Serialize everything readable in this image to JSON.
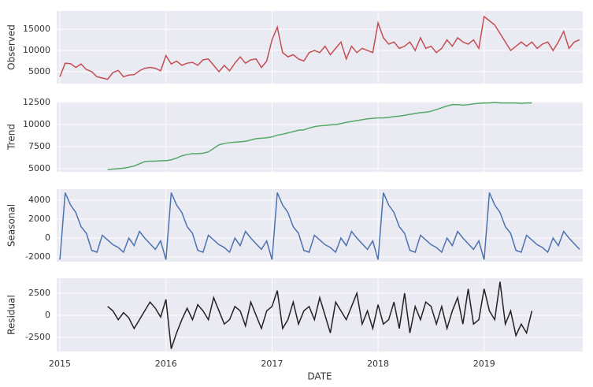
{
  "chart_data": [
    {
      "type": "line",
      "ylabel": "Observed",
      "color": "#c44e52",
      "x": [
        2015,
        2015.05,
        2015.1,
        2015.15,
        2015.2,
        2015.25,
        2015.3,
        2015.35,
        2015.4,
        2015.45,
        2015.5,
        2015.55,
        2015.6,
        2015.65,
        2015.7,
        2015.75,
        2015.8,
        2015.85,
        2015.9,
        2015.95,
        2016,
        2016.05,
        2016.1,
        2016.15,
        2016.2,
        2016.25,
        2016.3,
        2016.35,
        2016.4,
        2016.45,
        2016.5,
        2016.55,
        2016.6,
        2016.65,
        2016.7,
        2016.75,
        2016.8,
        2016.85,
        2016.9,
        2016.95,
        2017,
        2017.05,
        2017.1,
        2017.15,
        2017.2,
        2017.25,
        2017.3,
        2017.35,
        2017.4,
        2017.45,
        2017.5,
        2017.55,
        2017.6,
        2017.65,
        2017.7,
        2017.75,
        2017.8,
        2017.85,
        2017.9,
        2017.95,
        2018,
        2018.05,
        2018.1,
        2018.15,
        2018.2,
        2018.25,
        2018.3,
        2018.35,
        2018.4,
        2018.45,
        2018.5,
        2018.55,
        2018.6,
        2018.65,
        2018.7,
        2018.75,
        2018.8,
        2018.85,
        2018.9,
        2018.95,
        2019,
        2019.05,
        2019.1,
        2019.15,
        2019.2,
        2019.25,
        2019.3,
        2019.35,
        2019.4,
        2019.45,
        2019.5,
        2019.55,
        2019.6,
        2019.65,
        2019.7,
        2019.75,
        2019.8,
        2019.85,
        2019.9
      ],
      "values": [
        3800,
        7000,
        6900,
        6000,
        6800,
        5500,
        5000,
        3800,
        3500,
        3200,
        4800,
        5300,
        3800,
        4200,
        4300,
        5200,
        5800,
        6000,
        5800,
        5200,
        8800,
        6800,
        7500,
        6500,
        7000,
        7200,
        6500,
        7800,
        8000,
        6500,
        5000,
        6500,
        5200,
        7000,
        8500,
        7000,
        7800,
        8000,
        6000,
        7500,
        12500,
        15500,
        9500,
        8500,
        9000,
        8000,
        7500,
        9500,
        10000,
        9500,
        11000,
        9000,
        10500,
        12000,
        8000,
        11000,
        9500,
        10500,
        10000,
        9500,
        16500,
        13000,
        11500,
        12000,
        10500,
        11000,
        12000,
        10000,
        13000,
        10500,
        11000,
        9500,
        10500,
        12500,
        11000,
        13000,
        12000,
        11500,
        12500,
        10500,
        18000,
        17000,
        16000,
        14000,
        12000,
        10000,
        11000,
        12000,
        11000,
        12000,
        10500,
        11500,
        12000,
        10000,
        12000,
        14500,
        10500,
        12000,
        12500
      ],
      "xlim": [
        2014.97,
        2019.93
      ],
      "ylim": [
        2200,
        19300
      ],
      "yticks": [
        5000,
        10000,
        15000
      ]
    },
    {
      "type": "line",
      "ylabel": "Trend",
      "color": "#55a868",
      "x": [
        2015,
        2015.05,
        2015.1,
        2015.15,
        2015.2,
        2015.25,
        2015.3,
        2015.35,
        2015.4,
        2015.45,
        2015.5,
        2015.55,
        2015.6,
        2015.65,
        2015.7,
        2015.75,
        2015.8,
        2015.85,
        2015.9,
        2015.95,
        2016,
        2016.05,
        2016.1,
        2016.15,
        2016.2,
        2016.25,
        2016.3,
        2016.35,
        2016.4,
        2016.45,
        2016.5,
        2016.55,
        2016.6,
        2016.65,
        2016.7,
        2016.75,
        2016.8,
        2016.85,
        2016.9,
        2016.95,
        2017,
        2017.05,
        2017.1,
        2017.15,
        2017.2,
        2017.25,
        2017.3,
        2017.35,
        2017.4,
        2017.45,
        2017.5,
        2017.55,
        2017.6,
        2017.65,
        2017.7,
        2017.75,
        2017.8,
        2017.85,
        2017.9,
        2017.95,
        2018,
        2018.05,
        2018.1,
        2018.15,
        2018.2,
        2018.25,
        2018.3,
        2018.35,
        2018.4,
        2018.45,
        2018.5,
        2018.55,
        2018.6,
        2018.65,
        2018.7,
        2018.75,
        2018.8,
        2018.85,
        2018.9,
        2018.95,
        2019,
        2019.05,
        2019.1,
        2019.15,
        2019.2,
        2019.25,
        2019.3,
        2019.35,
        2019.4,
        2019.45,
        2019.5,
        2019.55,
        2019.6,
        2019.65,
        2019.7,
        2019.75,
        2019.8,
        2019.85,
        2019.9
      ],
      "values": [
        null,
        null,
        null,
        null,
        null,
        null,
        null,
        null,
        null,
        4900,
        4950,
        5000,
        5050,
        5150,
        5300,
        5550,
        5800,
        5850,
        5850,
        5900,
        5900,
        6000,
        6200,
        6450,
        6600,
        6700,
        6700,
        6750,
        6900,
        7300,
        7700,
        7850,
        7950,
        8000,
        8050,
        8100,
        8250,
        8400,
        8450,
        8500,
        8600,
        8800,
        8900,
        9050,
        9200,
        9350,
        9400,
        9600,
        9750,
        9850,
        9900,
        9950,
        10000,
        10100,
        10250,
        10350,
        10450,
        10550,
        10650,
        10700,
        10750,
        10750,
        10800,
        10900,
        10950,
        11050,
        11150,
        11250,
        11350,
        11400,
        11500,
        11700,
        11900,
        12100,
        12250,
        12250,
        12200,
        12250,
        12350,
        12400,
        12450,
        12450,
        12500,
        12450,
        12450,
        12450,
        12450,
        12400,
        12450,
        12450,
        null,
        null,
        null,
        null,
        null,
        null,
        null,
        null,
        null
      ],
      "xlim": [
        2014.97,
        2019.93
      ],
      "ylim": [
        4640,
        12590
      ],
      "yticks": [
        5000,
        7500,
        10000,
        12500
      ]
    },
    {
      "type": "line",
      "ylabel": "Seasonal",
      "color": "#4c72b0",
      "x": [
        2015,
        2015.05,
        2015.1,
        2015.15,
        2015.2,
        2015.25,
        2015.3,
        2015.35,
        2015.4,
        2015.45,
        2015.5,
        2015.55,
        2015.6,
        2015.65,
        2015.7,
        2015.75,
        2015.8,
        2015.85,
        2015.9,
        2015.95,
        2016,
        2016.05,
        2016.1,
        2016.15,
        2016.2,
        2016.25,
        2016.3,
        2016.35,
        2016.4,
        2016.45,
        2016.5,
        2016.55,
        2016.6,
        2016.65,
        2016.7,
        2016.75,
        2016.8,
        2016.85,
        2016.9,
        2016.95,
        2017,
        2017.05,
        2017.1,
        2017.15,
        2017.2,
        2017.25,
        2017.3,
        2017.35,
        2017.4,
        2017.45,
        2017.5,
        2017.55,
        2017.6,
        2017.65,
        2017.7,
        2017.75,
        2017.8,
        2017.85,
        2017.9,
        2017.95,
        2018,
        2018.05,
        2018.1,
        2018.15,
        2018.2,
        2018.25,
        2018.3,
        2018.35,
        2018.4,
        2018.45,
        2018.5,
        2018.55,
        2018.6,
        2018.65,
        2018.7,
        2018.75,
        2018.8,
        2018.85,
        2018.9,
        2018.95,
        2019,
        2019.05,
        2019.1,
        2019.15,
        2019.2,
        2019.25,
        2019.3,
        2019.35,
        2019.4,
        2019.45,
        2019.5,
        2019.55,
        2019.6,
        2019.65,
        2019.7,
        2019.75,
        2019.8,
        2019.85,
        2019.9
      ],
      "values": [
        -2300,
        4800,
        3500,
        2700,
        1200,
        500,
        -1300,
        -1500,
        300,
        -200,
        -700,
        -1000,
        -1500,
        0,
        -800,
        700,
        0,
        -600,
        -1200,
        -300,
        -2300,
        4800,
        3500,
        2700,
        1200,
        500,
        -1300,
        -1500,
        300,
        -200,
        -700,
        -1000,
        -1500,
        0,
        -800,
        700,
        0,
        -600,
        -1200,
        -300,
        -2300,
        4800,
        3500,
        2700,
        1200,
        500,
        -1300,
        -1500,
        300,
        -200,
        -700,
        -1000,
        -1500,
        0,
        -800,
        700,
        0,
        -600,
        -1200,
        -300,
        -2300,
        4800,
        3500,
        2700,
        1200,
        500,
        -1300,
        -1500,
        300,
        -200,
        -700,
        -1000,
        -1500,
        0,
        -800,
        700,
        0,
        -600,
        -1200,
        -300,
        -2300,
        4800,
        3500,
        2700,
        1200,
        500,
        -1300,
        -1500,
        300,
        -200,
        -700,
        -1000,
        -1500,
        0,
        -800,
        700,
        0,
        -600,
        -1200
      ],
      "xlim": [
        2014.97,
        2019.93
      ],
      "ylim": [
        -2500,
        5170
      ],
      "yticks": [
        -2000,
        0,
        2000,
        4000
      ]
    },
    {
      "type": "line",
      "ylabel": "Residual",
      "xlabel": "DATE",
      "color": "#222222",
      "x": [
        2015,
        2015.05,
        2015.1,
        2015.15,
        2015.2,
        2015.25,
        2015.3,
        2015.35,
        2015.4,
        2015.45,
        2015.5,
        2015.55,
        2015.6,
        2015.65,
        2015.7,
        2015.75,
        2015.8,
        2015.85,
        2015.9,
        2015.95,
        2016,
        2016.05,
        2016.1,
        2016.15,
        2016.2,
        2016.25,
        2016.3,
        2016.35,
        2016.4,
        2016.45,
        2016.5,
        2016.55,
        2016.6,
        2016.65,
        2016.7,
        2016.75,
        2016.8,
        2016.85,
        2016.9,
        2016.95,
        2017,
        2017.05,
        2017.1,
        2017.15,
        2017.2,
        2017.25,
        2017.3,
        2017.35,
        2017.4,
        2017.45,
        2017.5,
        2017.55,
        2017.6,
        2017.65,
        2017.7,
        2017.75,
        2017.8,
        2017.85,
        2017.9,
        2017.95,
        2018,
        2018.05,
        2018.1,
        2018.15,
        2018.2,
        2018.25,
        2018.3,
        2018.35,
        2018.4,
        2018.45,
        2018.5,
        2018.55,
        2018.6,
        2018.65,
        2018.7,
        2018.75,
        2018.8,
        2018.85,
        2018.9,
        2018.95,
        2019,
        2019.05,
        2019.1,
        2019.15,
        2019.2,
        2019.25,
        2019.3,
        2019.35,
        2019.4,
        2019.45,
        2019.5,
        2019.55,
        2019.6,
        2019.65,
        2019.7,
        2019.75,
        2019.8,
        2019.85,
        2019.9
      ],
      "values": [
        null,
        null,
        null,
        null,
        null,
        null,
        null,
        null,
        null,
        1000,
        500,
        -500,
        300,
        -300,
        -1500,
        -500,
        500,
        1500,
        800,
        -200,
        1800,
        -3800,
        -2000,
        -500,
        800,
        -500,
        1200,
        500,
        -500,
        2000,
        500,
        -1000,
        -500,
        1000,
        500,
        -1200,
        1500,
        0,
        -1500,
        500,
        1000,
        2800,
        -1500,
        -500,
        1500,
        -1000,
        500,
        1000,
        -500,
        2000,
        0,
        -2000,
        1500,
        500,
        -500,
        1000,
        2500,
        -1000,
        500,
        -1500,
        1200,
        -1000,
        -500,
        1500,
        -1500,
        2500,
        -2000,
        1000,
        -500,
        1500,
        1000,
        -1000,
        1000,
        -1500,
        500,
        2000,
        -1000,
        3000,
        -1000,
        -500,
        3000,
        500,
        -500,
        3800,
        -1000,
        500,
        -2300,
        -1000,
        -2000,
        500,
        null,
        null,
        null,
        null,
        null,
        null,
        null,
        null,
        null
      ],
      "xlim": [
        2014.97,
        2019.93
      ],
      "ylim": [
        -4110,
        4200
      ],
      "yticks": [
        -2500,
        0,
        2500
      ],
      "xticks": [
        2015,
        2016,
        2017,
        2018,
        2019
      ]
    }
  ]
}
